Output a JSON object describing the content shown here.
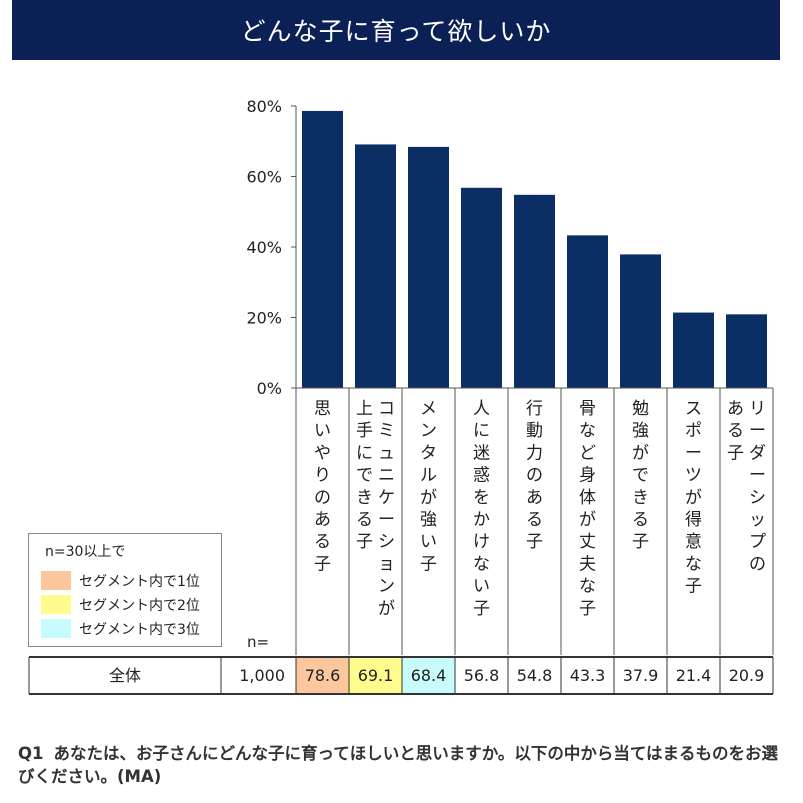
{
  "header": {
    "title": "どんな子に育って欲しいか"
  },
  "colors": {
    "bar": "#0b2f65",
    "rank1": "#fcc79c",
    "rank2": "#fffb8d",
    "rank3": "#c8fbfb"
  },
  "legend": {
    "title": "n=30以上で",
    "items": [
      {
        "label": "セグメント内で1位",
        "color": "#fcc79c"
      },
      {
        "label": "セグメント内で2位",
        "color": "#fffb8d"
      },
      {
        "label": "セグメント内で3位",
        "color": "#c8fbfb"
      }
    ]
  },
  "table": {
    "n_header": "n=",
    "row_label": "全体",
    "n_value": "1,000"
  },
  "chart_data": {
    "type": "bar",
    "title": "どんな子に育って欲しいか",
    "categories": [
      "思いやりのある子",
      "コミュニケーションが上手にできる子",
      "メンタルが強い子",
      "人に迷惑をかけない子",
      "行動力のある子",
      "骨など身体が丈夫な子",
      "勉強ができる子",
      "スポーツが得意な子",
      "リーダーシップのある子"
    ],
    "category_lines": [
      [
        "思いやりのある子"
      ],
      [
        "コミュニケーションが",
        "上手にできる子"
      ],
      [
        "メンタルが強い子"
      ],
      [
        "人に迷惑をかけない子"
      ],
      [
        "行動力のある子"
      ],
      [
        "骨など身体が丈夫な子"
      ],
      [
        "勉強ができる子"
      ],
      [
        "スポーツが得意な子"
      ],
      [
        "リーダーシップの",
        "ある子"
      ]
    ],
    "values": [
      78.6,
      69.1,
      68.4,
      56.8,
      54.8,
      43.3,
      37.9,
      21.4,
      20.9
    ],
    "value_labels": [
      "78.6",
      "69.1",
      "68.4",
      "56.8",
      "54.8",
      "43.3",
      "37.9",
      "21.4",
      "20.9"
    ],
    "highlight": [
      "rank1",
      "rank2",
      "rank3",
      "",
      "",
      "",
      "",
      "",
      ""
    ],
    "ylim": [
      0,
      80
    ],
    "yticks": [
      0,
      20,
      40,
      60,
      80
    ],
    "ytick_labels": [
      "0%",
      "20%",
      "40%",
      "60%",
      "80%"
    ],
    "grid": false
  },
  "question": {
    "number": "Q1",
    "text": "あなたは、お子さんにどんな子に育ってほしいと思いますか。以下の中から当てはまるものをお選びください。(MA)"
  }
}
